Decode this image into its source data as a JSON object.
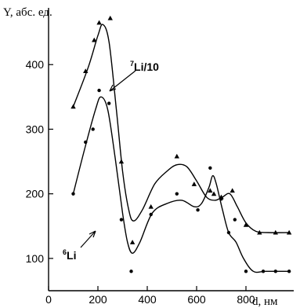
{
  "chart_data": {
    "type": "scatter",
    "ylabel": "Y, абс. ед.",
    "xlabel": "d, нм",
    "xlim": [
      0,
      1000
    ],
    "ylim": [
      50,
      500
    ],
    "xticks": [
      0,
      200,
      400,
      600,
      800
    ],
    "yticks": [
      100,
      200,
      300,
      400
    ],
    "grid": false,
    "series": [
      {
        "name": "Li/10",
        "mass_number": "7",
        "marker": "triangle",
        "points": [
          [
            100,
            335
          ],
          [
            150,
            390
          ],
          [
            185,
            438
          ],
          [
            205,
            465
          ],
          [
            250,
            472
          ],
          [
            295,
            250
          ],
          [
            340,
            125
          ],
          [
            415,
            180
          ],
          [
            520,
            258
          ],
          [
            590,
            215
          ],
          [
            655,
            205
          ],
          [
            670,
            200
          ],
          [
            700,
            195
          ],
          [
            745,
            205
          ],
          [
            800,
            152
          ],
          [
            855,
            140
          ],
          [
            920,
            140
          ],
          [
            975,
            140
          ]
        ],
        "curve": [
          [
            100,
            335
          ],
          [
            160,
            395
          ],
          [
            200,
            445
          ],
          [
            220,
            462
          ],
          [
            245,
            435
          ],
          [
            275,
            330
          ],
          [
            300,
            235
          ],
          [
            325,
            175
          ],
          [
            345,
            158
          ],
          [
            380,
            175
          ],
          [
            430,
            215
          ],
          [
            480,
            235
          ],
          [
            520,
            245
          ],
          [
            560,
            242
          ],
          [
            600,
            220
          ],
          [
            640,
            195
          ],
          [
            675,
            190
          ],
          [
            705,
            195
          ],
          [
            735,
            200
          ],
          [
            765,
            180
          ],
          [
            800,
            155
          ],
          [
            840,
            142
          ],
          [
            890,
            140
          ],
          [
            975,
            140
          ]
        ]
      },
      {
        "name": "Li",
        "mass_number": "6",
        "marker": "circle",
        "points": [
          [
            100,
            200
          ],
          [
            150,
            280
          ],
          [
            180,
            300
          ],
          [
            205,
            360
          ],
          [
            245,
            340
          ],
          [
            295,
            160
          ],
          [
            335,
            80
          ],
          [
            415,
            168
          ],
          [
            520,
            200
          ],
          [
            605,
            175
          ],
          [
            655,
            240
          ],
          [
            700,
            192
          ],
          [
            730,
            140
          ],
          [
            755,
            160
          ],
          [
            800,
            80
          ],
          [
            870,
            80
          ],
          [
            920,
            80
          ],
          [
            975,
            80
          ]
        ],
        "curve": [
          [
            100,
            200
          ],
          [
            150,
            275
          ],
          [
            190,
            330
          ],
          [
            212,
            350
          ],
          [
            240,
            330
          ],
          [
            270,
            255
          ],
          [
            300,
            170
          ],
          [
            320,
            125
          ],
          [
            340,
            108
          ],
          [
            370,
            125
          ],
          [
            420,
            170
          ],
          [
            480,
            185
          ],
          [
            540,
            190
          ],
          [
            590,
            180
          ],
          [
            620,
            185
          ],
          [
            650,
            210
          ],
          [
            665,
            228
          ],
          [
            680,
            215
          ],
          [
            705,
            175
          ],
          [
            730,
            140
          ],
          [
            760,
            125
          ],
          [
            790,
            100
          ],
          [
            830,
            80
          ],
          [
            880,
            80
          ],
          [
            975,
            80
          ]
        ]
      }
    ]
  }
}
